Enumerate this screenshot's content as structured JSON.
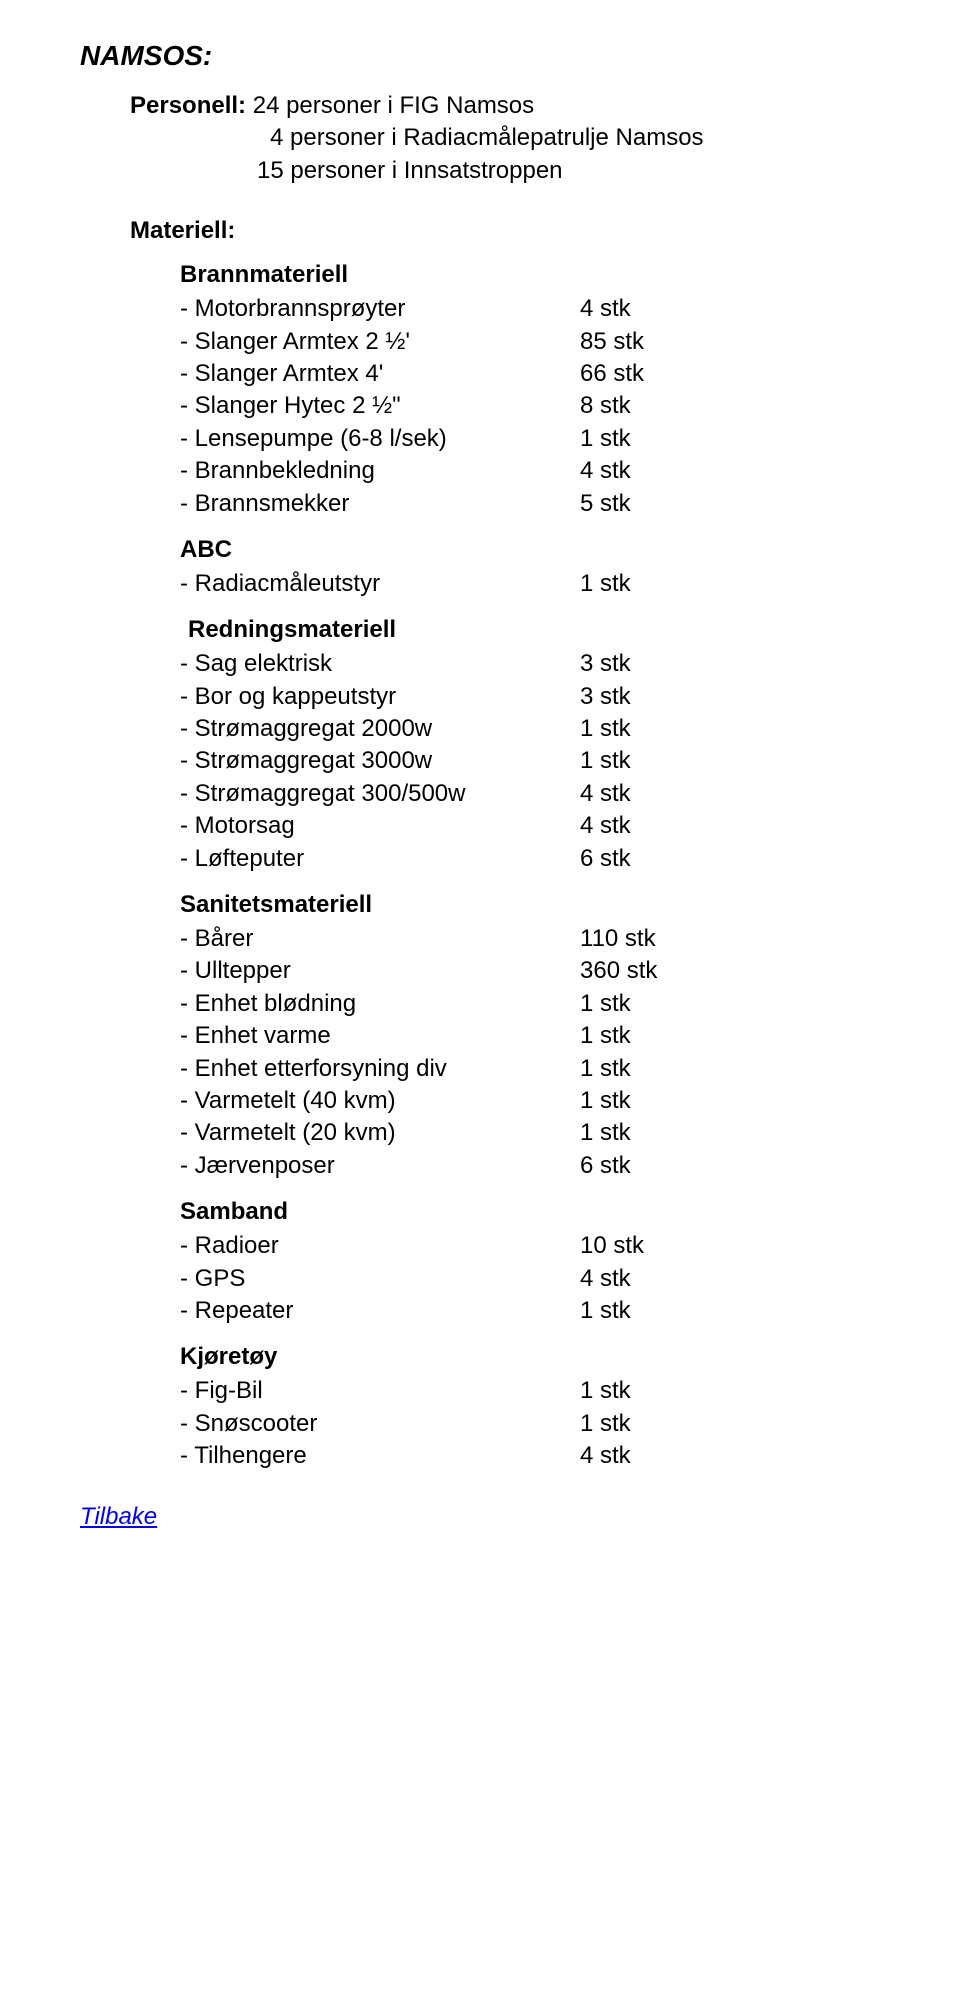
{
  "title": "NAMSOS:",
  "personell": {
    "label": "Personell:",
    "lines": [
      "24 personer i FIG Namsos",
      "4 personer i Radiacmålepatrulje Namsos",
      "15 personer i Innsatstroppen"
    ]
  },
  "materiell_label": "Materiell:",
  "sections": [
    {
      "title": "Brannmateriell",
      "rows": [
        {
          "label": "- Motorbrannsprøyter",
          "value": "4 stk"
        },
        {
          "label": "- Slanger Armtex 2 ½'",
          "value": "85 stk"
        },
        {
          "label": "- Slanger Armtex 4'",
          "value": "66 stk"
        },
        {
          "label": "- Slanger Hytec 2 ½\"",
          "value": "8 stk"
        },
        {
          "label": "- Lensepumpe (6-8 l/sek)",
          "value": "1 stk"
        },
        {
          "label": "- Brannbekledning",
          "value": "4 stk"
        },
        {
          "label": "- Brannsmekker",
          "value": "5 stk"
        }
      ]
    },
    {
      "title": "ABC",
      "rows": [
        {
          "label": "- Radiacmåleutstyr",
          "value": "1 stk"
        }
      ]
    },
    {
      "title": "Redningsmateriell",
      "rows": [
        {
          "label": "- Sag elektrisk",
          "value": "3 stk"
        },
        {
          "label": "- Bor og kappeutstyr",
          "value": "3 stk"
        },
        {
          "label": "- Strømaggregat 2000w",
          "value": "1 stk"
        },
        {
          "label": "- Strømaggregat 3000w",
          "value": "1 stk"
        },
        {
          "label": "- Strømaggregat 300/500w",
          "value": "4 stk"
        },
        {
          "label": "- Motorsag",
          "value": "4 stk"
        },
        {
          "label": "- Løfteputer",
          "value": "6 stk"
        }
      ]
    },
    {
      "title": "Sanitetsmateriell",
      "rows": [
        {
          "label": "- Bårer",
          "value": "110 stk"
        },
        {
          "label": "- Ulltepper",
          "value": "360 stk"
        },
        {
          "label": "- Enhet blødning",
          "value": "1 stk"
        },
        {
          "label": "- Enhet varme",
          "value": "1 stk"
        },
        {
          "label": "- Enhet etterforsyning div",
          "value": "1 stk"
        },
        {
          "label": "- Varmetelt (40 kvm)",
          "value": "1 stk"
        },
        {
          "label": "- Varmetelt (20 kvm)",
          "value": "1 stk"
        },
        {
          "label": "- Jærvenposer",
          "value": "6 stk"
        }
      ]
    },
    {
      "title": "Samband",
      "rows": [
        {
          "label": "- Radioer",
          "value": "10 stk"
        },
        {
          "label": "- GPS",
          "value": "4 stk"
        },
        {
          "label": "- Repeater",
          "value": "1 stk"
        }
      ]
    },
    {
      "title": "Kjøretøy",
      "rows": [
        {
          "label": "- Fig-Bil",
          "value": "1 stk"
        },
        {
          "label": "- Snøscooter",
          "value": "1 stk"
        },
        {
          "label": "- Tilhengere",
          "value": "4 stk"
        }
      ]
    }
  ],
  "back_link": "Tilbake"
}
